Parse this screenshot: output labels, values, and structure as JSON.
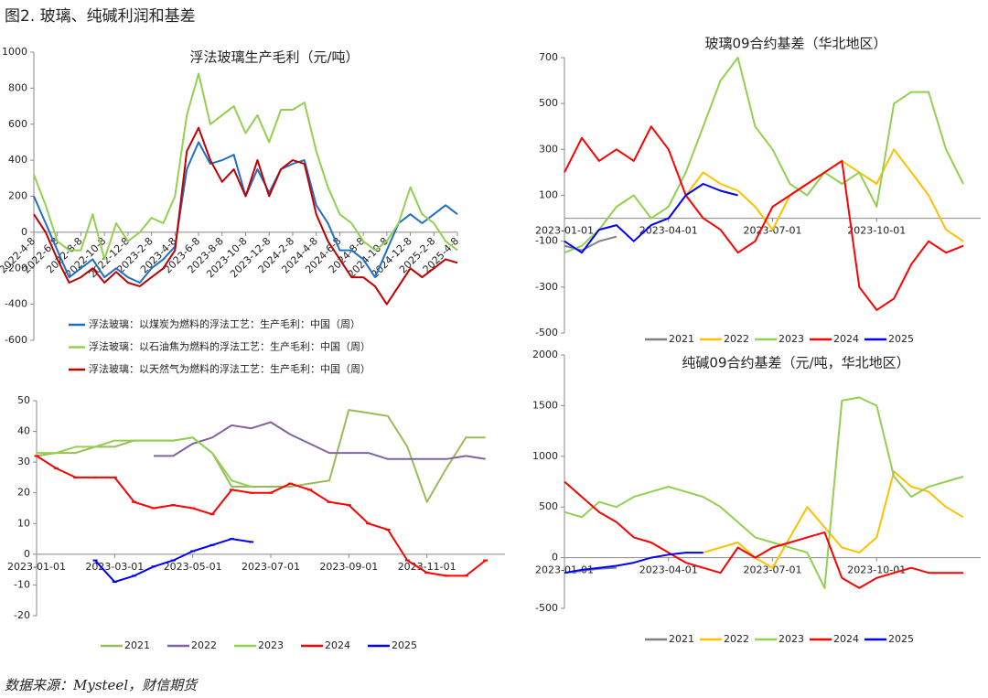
{
  "header": {
    "title": "图2. 玻璃、纯碱利润和基差"
  },
  "source": "数据来源：Mysteel，财信期货",
  "chart_data": [
    {
      "type": "line",
      "title": "浮法玻璃生产毛利（元/吨）",
      "categories": [
        "2022-4-8",
        null,
        "2022-6-8",
        null,
        "2022-8-8",
        null,
        "2022-10-8",
        null,
        "2022-12-8",
        null,
        "2023-2-8",
        null,
        "2023-4-8",
        null,
        "2023-6-8",
        null,
        "2023-8-8",
        null,
        "2023-10-8",
        null,
        "2023-12-8",
        null,
        "2024-2-8",
        null,
        "2024-4-8",
        null,
        "2024-6-8",
        null,
        "2024-8-8",
        null,
        "2024-10-8",
        null,
        "2024-12-8",
        null,
        "2025-2-8",
        null,
        "2025-4-8"
      ],
      "ylim": [
        -600,
        1000
      ],
      "yticks": [
        -600,
        -400,
        -200,
        0,
        200,
        400,
        600,
        800,
        1000
      ],
      "series": [
        {
          "name": "浮法玻璃：以煤炭为燃料的浮法工艺：生产毛利：中国（周）",
          "color": "#1f6fc5",
          "values": [
            200,
            50,
            -100,
            -250,
            -200,
            -150,
            -250,
            -200,
            -250,
            -280,
            -200,
            -150,
            -80,
            350,
            500,
            380,
            400,
            430,
            200,
            350,
            220,
            350,
            380,
            400,
            150,
            50,
            -100,
            -100,
            -150,
            -250,
            -100,
            50,
            100,
            50,
            100,
            150,
            100
          ]
        },
        {
          "name": "浮法玻璃：以石油焦为燃料的浮法工艺：生产毛利：中国（周）",
          "color": "#92d050",
          "values": [
            320,
            150,
            -50,
            -100,
            -100,
            100,
            -150,
            50,
            -50,
            0,
            80,
            50,
            200,
            650,
            880,
            600,
            650,
            700,
            550,
            650,
            500,
            680,
            680,
            720,
            450,
            250,
            100,
            50,
            -50,
            -100,
            -50,
            50,
            250,
            100,
            50,
            -50,
            -100
          ]
        },
        {
          "name": "浮法玻璃：以天然气为燃料的浮法工艺：生产毛利：中国（周）",
          "color": "#c00000",
          "values": [
            100,
            0,
            -150,
            -280,
            -250,
            -200,
            -280,
            -220,
            -280,
            -300,
            -250,
            -200,
            -100,
            450,
            580,
            400,
            280,
            350,
            200,
            400,
            200,
            350,
            400,
            380,
            100,
            -50,
            -150,
            -250,
            -250,
            -300,
            -400,
            -300,
            -200,
            -250,
            -200,
            -150,
            -170
          ]
        }
      ]
    },
    {
      "type": "line",
      "categories": [
        "2023-01-01",
        null,
        null,
        null,
        "2023-03-01",
        null,
        null,
        null,
        "2023-05-01",
        null,
        null,
        null,
        "2023-07-01",
        null,
        null,
        null,
        "2023-09-01",
        null,
        null,
        null,
        "2023-11-01",
        null,
        null,
        null
      ],
      "ylim": [
        -20,
        50
      ],
      "yticks": [
        -20,
        -10,
        0,
        10,
        20,
        30,
        40,
        50
      ],
      "series": [
        {
          "name": "2021",
          "color": "#9bbb59",
          "values": [
            32,
            33,
            33,
            35,
            35,
            37,
            37,
            37,
            38,
            33,
            22,
            22,
            22,
            22,
            23,
            24,
            47,
            46,
            45,
            35,
            17,
            28,
            38,
            38
          ]
        },
        {
          "name": "2022",
          "color": "#8064a2",
          "values": [
            null,
            null,
            null,
            null,
            null,
            null,
            32,
            32,
            36,
            38,
            42,
            41,
            43,
            39,
            36,
            33,
            33,
            33,
            31,
            31,
            31,
            31,
            32,
            31
          ]
        },
        {
          "name": "2023",
          "color": "#92d050",
          "values": [
            33,
            33,
            35,
            35,
            37,
            37,
            37,
            37,
            38,
            33,
            24,
            22,
            null,
            null,
            null,
            null,
            null,
            null,
            null,
            null,
            null,
            null,
            null,
            null
          ]
        },
        {
          "name": "2024",
          "color": "#ff0000",
          "marker": true,
          "values": [
            32,
            28,
            25,
            25,
            25,
            17,
            15,
            16,
            15,
            13,
            21,
            20,
            20,
            23,
            21,
            17,
            16,
            10,
            8,
            -2,
            -6,
            -7,
            -7,
            -2
          ]
        },
        {
          "name": "2025",
          "color": "#0000ff",
          "marker": true,
          "values": [
            null,
            null,
            null,
            -2,
            -9,
            -7,
            -4,
            -2,
            1,
            3,
            5,
            4,
            null,
            null,
            null,
            null,
            null,
            null,
            null,
            null,
            null,
            null,
            null,
            null
          ]
        }
      ]
    },
    {
      "type": "line",
      "title": "玻璃09合约基差（华北地区）",
      "categories": [
        "2023-01-01",
        null,
        null,
        null,
        null,
        null,
        "2023-04-01",
        null,
        null,
        null,
        null,
        null,
        "2023-07-01",
        null,
        null,
        null,
        null,
        null,
        "2023-10-01",
        null,
        null,
        null,
        null,
        null
      ],
      "ylim": [
        -500,
        700
      ],
      "yticks": [
        -500,
        -300,
        -100,
        100,
        300,
        500,
        700
      ],
      "series": [
        {
          "name": "2021",
          "color": "#808080",
          "values": [
            -120,
            -140,
            -100,
            -80,
            null,
            null,
            null,
            null,
            null,
            null,
            null,
            null,
            null,
            null,
            null,
            null,
            null,
            null,
            null,
            null,
            null,
            null,
            null,
            null
          ]
        },
        {
          "name": "2022",
          "color": "#ffc000",
          "values": [
            null,
            null,
            null,
            null,
            null,
            null,
            null,
            100,
            200,
            150,
            120,
            50,
            -50,
            100,
            150,
            200,
            250,
            200,
            150,
            300,
            200,
            100,
            -50,
            -100
          ]
        },
        {
          "name": "2023",
          "color": "#92d050",
          "values": [
            -150,
            -120,
            -50,
            50,
            100,
            0,
            50,
            200,
            400,
            600,
            700,
            400,
            300,
            150,
            100,
            200,
            150,
            200,
            50,
            500,
            550,
            550,
            300,
            150
          ]
        },
        {
          "name": "2024",
          "color": "#ff0000",
          "values": [
            200,
            350,
            250,
            300,
            250,
            400,
            300,
            100,
            0,
            -50,
            -150,
            -100,
            50,
            100,
            150,
            200,
            250,
            -300,
            -400,
            -350,
            -200,
            -100,
            -150,
            -120
          ]
        },
        {
          "name": "2025",
          "color": "#0000ff",
          "values": [
            -100,
            -150,
            -50,
            -30,
            -100,
            -30,
            0,
            100,
            150,
            120,
            100,
            null,
            null,
            null,
            null,
            null,
            null,
            null,
            null,
            null,
            null,
            null,
            null,
            null
          ]
        }
      ]
    },
    {
      "type": "line",
      "title": "纯碱09合约基差（元/吨，华北地区）",
      "categories": [
        "2023-01-01",
        null,
        null,
        null,
        null,
        null,
        "2023-04-01",
        null,
        null,
        null,
        null,
        null,
        "2023-07-01",
        null,
        null,
        null,
        null,
        null,
        "2023-10-01",
        null,
        null,
        null,
        null,
        null
      ],
      "ylim": [
        -500,
        2000
      ],
      "yticks": [
        -500,
        0,
        500,
        1000,
        1500,
        2000
      ],
      "series": [
        {
          "name": "2021",
          "color": "#808080",
          "values": [
            -150,
            -130,
            -110,
            -100,
            null,
            null,
            null,
            null,
            null,
            null,
            null,
            null,
            null,
            null,
            null,
            null,
            null,
            null,
            null,
            null,
            null,
            null,
            null,
            null
          ]
        },
        {
          "name": "2022",
          "color": "#ffc000",
          "values": [
            null,
            null,
            null,
            null,
            null,
            null,
            null,
            null,
            50,
            100,
            150,
            0,
            -100,
            200,
            500,
            300,
            100,
            50,
            200,
            850,
            700,
            650,
            500,
            400
          ]
        },
        {
          "name": "2023",
          "color": "#92d050",
          "values": [
            450,
            400,
            550,
            500,
            600,
            650,
            700,
            650,
            600,
            500,
            350,
            200,
            150,
            100,
            50,
            -300,
            1550,
            1580,
            1500,
            800,
            600,
            700,
            750,
            800
          ]
        },
        {
          "name": "2024",
          "color": "#ff0000",
          "values": [
            750,
            600,
            450,
            350,
            200,
            150,
            50,
            -50,
            -100,
            -150,
            100,
            0,
            100,
            150,
            200,
            250,
            -200,
            -300,
            -200,
            -150,
            -100,
            -150,
            -150,
            -150
          ]
        },
        {
          "name": "2025",
          "color": "#0000ff",
          "values": [
            -150,
            -120,
            -100,
            -80,
            -50,
            0,
            30,
            50,
            50,
            null,
            null,
            null,
            null,
            null,
            null,
            null,
            null,
            null,
            null,
            null,
            null,
            null,
            null,
            null
          ]
        }
      ]
    }
  ]
}
